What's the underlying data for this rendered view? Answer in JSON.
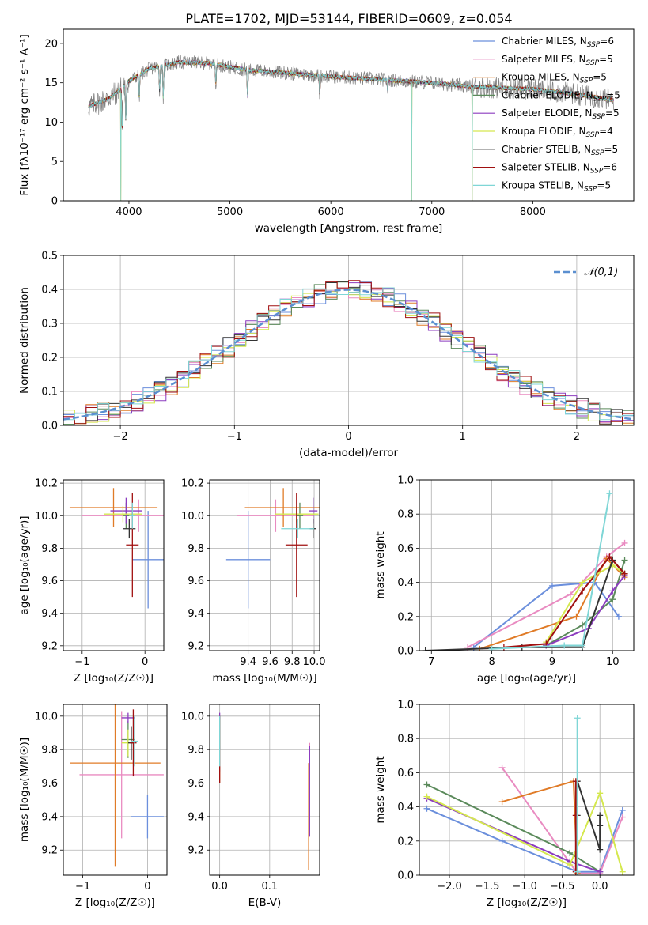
{
  "figure_title": "PLATE=1702, MJD=53144, FIBERID=0609, z=0.054",
  "colors": {
    "Chabrier MILES": "#6b8fdc",
    "Salpeter MILES": "#e98bc1",
    "Kroupa MILES": "#e07b27",
    "Chabrier ELODIE": "#5b8a5b",
    "Salpeter ELODIE": "#8c3cbf",
    "Kroupa ELODIE": "#d5e84f",
    "Chabrier STELIB": "#333333",
    "Salpeter STELIB": "#a01010",
    "Kroupa STELIB": "#7fd6d6",
    "data": "#808080",
    "normal": "#5b8fd0"
  },
  "chart_data": [
    {
      "type": "line",
      "title": "PLATE=1702, MJD=53144, FIBERID=0609, z=0.054",
      "xlabel": "wavelength [Angstrom, rest frame]",
      "ylabel": "Flux [fλ10⁻¹⁷ erg cm⁻² s⁻¹ A⁻¹]",
      "xlim": [
        3350,
        9000
      ],
      "ylim": [
        0,
        21.8
      ],
      "xticks": [
        4000,
        5000,
        6000,
        7000,
        8000
      ],
      "yticks": [
        0,
        5,
        10,
        15,
        20
      ],
      "grid": false,
      "legend_position": "upper-right",
      "legend": [
        {
          "base": "Chabrier MILES, N",
          "sub": "SSP",
          "n": "=6"
        },
        {
          "base": "Salpeter MILES, N",
          "sub": "SSP",
          "n": "=5"
        },
        {
          "base": "Kroupa MILES, N",
          "sub": "SSP",
          "n": "=5"
        },
        {
          "base": "Chabrier ELODIE, N",
          "sub": "SSP",
          "n": "=5"
        },
        {
          "base": "Salpeter ELODIE, N",
          "sub": "SSP",
          "n": "=5"
        },
        {
          "base": "Kroupa ELODIE, N",
          "sub": "SSP",
          "n": "=4"
        },
        {
          "base": "Chabrier STELIB, N",
          "sub": "SSP",
          "n": "=5"
        },
        {
          "base": "Salpeter STELIB, N",
          "sub": "SSP",
          "n": "=6"
        },
        {
          "base": "Kroupa STELIB, N",
          "sub": "SSP",
          "n": "=5"
        }
      ],
      "spectrum_range": [
        3600,
        8800
      ],
      "continuum": [
        [
          3600,
          12.0
        ],
        [
          3700,
          12.5
        ],
        [
          3800,
          13.0
        ],
        [
          3900,
          14.0
        ],
        [
          4000,
          15.2
        ],
        [
          4200,
          16.8
        ],
        [
          4500,
          17.6
        ],
        [
          4800,
          17.5
        ],
        [
          5000,
          17.0
        ],
        [
          5200,
          16.6
        ],
        [
          5500,
          16.3
        ],
        [
          6000,
          15.8
        ],
        [
          6500,
          15.4
        ],
        [
          7000,
          15.0
        ],
        [
          7400,
          14.5
        ],
        [
          8000,
          14.2
        ],
        [
          8400,
          13.6
        ],
        [
          8800,
          12.8
        ]
      ],
      "absorption_features": [
        {
          "wave": 3934,
          "depth": 5.5
        },
        {
          "wave": 3969,
          "depth": 4.5
        },
        {
          "wave": 4102,
          "depth": 3.0
        },
        {
          "wave": 4304,
          "depth": 3.0
        },
        {
          "wave": 4340,
          "depth": 4.0
        },
        {
          "wave": 4861,
          "depth": 2.5
        },
        {
          "wave": 5175,
          "depth": 3.5
        },
        {
          "wave": 5890,
          "depth": 2.5
        },
        {
          "wave": 6563,
          "depth": 1.2
        }
      ],
      "model_dropouts": [
        {
          "wave": 3920,
          "y_min": 0
        },
        {
          "wave": 6800,
          "y_min": 0
        },
        {
          "wave": 7400,
          "y_min": 0
        }
      ]
    },
    {
      "type": "step",
      "xlabel": "(data-model)/error",
      "ylabel": "Normed distribution",
      "xlim": [
        -2.5,
        2.5
      ],
      "ylim": [
        0,
        0.5
      ],
      "xticks": [
        -2,
        -1,
        0,
        1,
        2
      ],
      "yticks": [
        0.0,
        0.1,
        0.2,
        0.3,
        0.4,
        0.5
      ],
      "grid": true,
      "bin_width": 0.1,
      "legend": [
        "𝒩(0,1)"
      ],
      "legend_position": "upper-right",
      "normal_curve": {
        "mean": 0,
        "sigma": 1,
        "style": "dashed"
      }
    },
    {
      "type": "errorbar",
      "xlabel": "Z [log₁₀(Z/Z☉)]",
      "ylabel": "age  [log₁₀(age/yr)]",
      "xlim": [
        -1.3,
        0.3
      ],
      "ylim": [
        9.17,
        10.22
      ],
      "xticks": [
        -1,
        0
      ],
      "yticks": [
        9.2,
        9.4,
        9.6,
        9.8,
        10.0,
        10.2
      ],
      "grid": true,
      "points": [
        {
          "series": "Chabrier MILES",
          "x": 0.05,
          "xerr": 0.25,
          "y": 9.73,
          "yerr": 0.3
        },
        {
          "series": "Salpeter MILES",
          "x": -0.1,
          "xerr": 0.9,
          "y": 10.0,
          "yerr": 0.1
        },
        {
          "series": "Kroupa MILES",
          "x": -0.5,
          "xerr": 0.7,
          "y": 10.05,
          "yerr": 0.12
        },
        {
          "series": "Chabrier ELODIE",
          "x": -0.3,
          "xerr": 0.05,
          "y": 10.0,
          "yerr": 0.08
        },
        {
          "series": "Salpeter ELODIE",
          "x": -0.3,
          "xerr": 0.25,
          "y": 10.03,
          "yerr": 0.08
        },
        {
          "series": "Kroupa ELODIE",
          "x": -0.35,
          "xerr": 0.3,
          "y": 10.01,
          "yerr": 0.05
        },
        {
          "series": "Chabrier STELIB",
          "x": -0.25,
          "xerr": 0.1,
          "y": 9.92,
          "yerr": 0.06
        },
        {
          "series": "Salpeter STELIB",
          "x": -0.2,
          "xerr": 0.1,
          "y": 9.82,
          "yerr": 0.32
        },
        {
          "series": "Kroupa STELIB",
          "x": -0.2,
          "xerr": 0.05,
          "y": 10.0,
          "yerr": 0.08
        }
      ]
    },
    {
      "type": "errorbar",
      "xlabel": "mass [log₁₀(M/M☉)]",
      "ylabel": "",
      "xlim": [
        9.05,
        10.05
      ],
      "ylim": [
        9.17,
        10.22
      ],
      "xticks": [
        9.4,
        9.6,
        9.8,
        10.0
      ],
      "yticks": [
        9.2,
        9.4,
        9.6,
        9.8,
        10.0,
        10.2
      ],
      "grid": true,
      "points": [
        {
          "series": "Chabrier MILES",
          "x": 9.4,
          "xerr": 0.2,
          "y": 9.73,
          "yerr": 0.3
        },
        {
          "series": "Salpeter MILES",
          "x": 9.65,
          "xerr": 0.35,
          "y": 10.0,
          "yerr": 0.1
        },
        {
          "series": "Kroupa MILES",
          "x": 9.72,
          "xerr": 0.35,
          "y": 10.05,
          "yerr": 0.12
        },
        {
          "series": "Chabrier ELODIE",
          "x": 9.87,
          "xerr": 0.03,
          "y": 10.0,
          "yerr": 0.08
        },
        {
          "series": "Salpeter ELODIE",
          "x": 9.99,
          "xerr": 0.04,
          "y": 10.03,
          "yerr": 0.08
        },
        {
          "series": "Kroupa ELODIE",
          "x": 9.84,
          "xerr": 0.2,
          "y": 10.01,
          "yerr": 0.05
        },
        {
          "series": "Chabrier STELIB",
          "x": 9.99,
          "xerr": 0.03,
          "y": 9.92,
          "yerr": 0.06
        },
        {
          "series": "Salpeter STELIB",
          "x": 9.84,
          "xerr": 0.1,
          "y": 9.82,
          "yerr": 0.32
        },
        {
          "series": "Kroupa STELIB",
          "x": 9.85,
          "xerr": 0.15,
          "y": 9.92,
          "yerr": 0.06
        }
      ]
    },
    {
      "type": "line",
      "xlabel": "age  [log₁₀(age/yr)]",
      "ylabel": "mass weight",
      "xlim": [
        6.8,
        10.35
      ],
      "ylim": [
        0,
        1.0
      ],
      "xticks": [
        7,
        8,
        9,
        10
      ],
      "yticks": [
        0.0,
        0.2,
        0.4,
        0.6,
        0.8,
        1.0
      ],
      "grid": true,
      "marker": "+",
      "series": [
        {
          "name": "Chabrier MILES",
          "x": [
            7.7,
            9.0,
            9.7,
            10.1
          ],
          "y": [
            0.02,
            0.38,
            0.4,
            0.2
          ]
        },
        {
          "name": "Salpeter MILES",
          "x": [
            7.6,
            9.3,
            9.9,
            10.2
          ],
          "y": [
            0.02,
            0.33,
            0.55,
            0.63
          ]
        },
        {
          "name": "Kroupa MILES",
          "x": [
            7.8,
            9.4,
            9.9,
            10.2
          ],
          "y": [
            0.01,
            0.2,
            0.54,
            0.43
          ]
        },
        {
          "name": "Chabrier ELODIE",
          "x": [
            8.9,
            9.5,
            10.0,
            10.2
          ],
          "y": [
            0.03,
            0.15,
            0.3,
            0.53
          ]
        },
        {
          "name": "Salpeter ELODIE",
          "x": [
            8.9,
            9.6,
            10.0,
            10.2
          ],
          "y": [
            0.03,
            0.13,
            0.35,
            0.44
          ]
        },
        {
          "name": "Kroupa ELODIE",
          "x": [
            8.9,
            9.5,
            10.0,
            10.2
          ],
          "y": [
            0.05,
            0.4,
            0.5,
            0.45
          ]
        },
        {
          "name": "Chabrier STELIB",
          "x": [
            6.9,
            8.5,
            9.5,
            10.0,
            10.2
          ],
          "y": [
            0.0,
            0.02,
            0.02,
            0.53,
            0.45
          ]
        },
        {
          "name": "Salpeter STELIB",
          "x": [
            8.2,
            8.9,
            9.5,
            9.95,
            10.2
          ],
          "y": [
            0.02,
            0.04,
            0.35,
            0.55,
            0.45
          ]
        },
        {
          "name": "Kroupa STELIB",
          "x": [
            8.0,
            9.2,
            9.5,
            9.95
          ],
          "y": [
            0.01,
            0.03,
            0.03,
            0.92
          ]
        }
      ]
    },
    {
      "type": "errorbar",
      "xlabel": "Z [log₁₀(Z/Z☉)]",
      "ylabel": "mass [log₁₀(M/M☉)]",
      "xlim": [
        -1.3,
        0.3
      ],
      "ylim": [
        9.05,
        10.07
      ],
      "xticks": [
        -1,
        0
      ],
      "yticks": [
        9.2,
        9.4,
        9.6,
        9.8,
        10.0
      ],
      "grid": true,
      "points": [
        {
          "series": "Chabrier MILES",
          "x": 0.0,
          "xerr": 0.25,
          "y": 9.4,
          "yerr": 0.13
        },
        {
          "series": "Salpeter MILES",
          "x": -0.4,
          "xerr": 0.65,
          "y": 9.65,
          "yerr": 0.38
        },
        {
          "series": "Kroupa MILES",
          "x": -0.5,
          "xerr": 0.7,
          "y": 9.72,
          "yerr": 0.62
        },
        {
          "series": "Chabrier ELODIE",
          "x": -0.3,
          "xerr": 0.1,
          "y": 9.86,
          "yerr": 0.11
        },
        {
          "series": "Salpeter ELODIE",
          "x": -0.3,
          "xerr": 0.1,
          "y": 9.99,
          "yerr": 0.03
        },
        {
          "series": "Kroupa ELODIE",
          "x": -0.3,
          "xerr": 0.1,
          "y": 9.84,
          "yerr": 0.08
        },
        {
          "series": "Chabrier STELIB",
          "x": -0.25,
          "xerr": 0.05,
          "y": 9.84,
          "yerr": 0.1
        },
        {
          "series": "Salpeter STELIB",
          "x": -0.22,
          "xerr": 0.05,
          "y": 9.84,
          "yerr": 0.2
        },
        {
          "series": "Kroupa STELIB",
          "x": -0.2,
          "xerr": 0.05,
          "y": 9.85,
          "yerr": 0.15
        }
      ]
    },
    {
      "type": "errorbar",
      "xlabel": "E(B-V)",
      "ylabel": "",
      "xlim": [
        -0.02,
        0.2
      ],
      "ylim": [
        9.05,
        10.07
      ],
      "xticks": [
        0.0,
        0.1
      ],
      "yticks": [
        9.2,
        9.4,
        9.6,
        9.8,
        10.0
      ],
      "grid": true,
      "points": [
        {
          "series": "Chabrier MILES",
          "x": 0.0,
          "y": 9.82,
          "yerr": 0.15
        },
        {
          "series": "Salpeter MILES",
          "x": 0.0,
          "y": 9.85,
          "yerr": 0.15
        },
        {
          "series": "Kroupa MILES",
          "x": 0.0,
          "y": 9.8,
          "yerr": 0.2
        },
        {
          "series": "Chabrier ELODIE",
          "x": 0.0,
          "y": 9.9,
          "yerr": 0.1
        },
        {
          "series": "Salpeter ELODIE",
          "x": 0.0,
          "y": 9.95,
          "yerr": 0.07
        },
        {
          "series": "Kroupa ELODIE",
          "x": 0.0,
          "y": 9.9,
          "yerr": 0.08
        },
        {
          "series": "Chabrier STELIB",
          "x": 0.0,
          "y": 9.9,
          "yerr": 0.1
        },
        {
          "series": "Salpeter STELIB",
          "x": 0.0,
          "y": 9.8,
          "yerr": 0.2
        },
        {
          "series": "Kroupa STELIB",
          "x": 0.0,
          "y": 9.85,
          "yerr": 0.15
        },
        {
          "series": "Salpeter MILES",
          "x": 0.18,
          "y": 9.56,
          "yerr": 0.28
        },
        {
          "series": "Salpeter ELODIE",
          "x": 0.18,
          "y": 9.55,
          "yerr": 0.27
        },
        {
          "series": "Kroupa MILES",
          "x": 0.178,
          "y": 9.4,
          "yerr": 0.32
        }
      ]
    },
    {
      "type": "line",
      "xlabel": "Z [log₁₀(Z/Z☉)]",
      "ylabel": "mass weight",
      "xlim": [
        -2.4,
        0.45
      ],
      "ylim": [
        0,
        1.0
      ],
      "xticks": [
        -2.0,
        -1.5,
        -1.0,
        -0.5,
        0.0
      ],
      "yticks": [
        0.0,
        0.2,
        0.4,
        0.6,
        0.8,
        1.0
      ],
      "grid": true,
      "marker": "+",
      "series": [
        {
          "name": "Chabrier MILES",
          "x": [
            -2.3,
            -1.3,
            -0.3,
            0.0,
            0.3
          ],
          "y": [
            0.39,
            0.2,
            0.02,
            0.02,
            0.38
          ]
        },
        {
          "name": "Salpeter MILES",
          "x": [
            -1.3,
            -0.3,
            0.0,
            0.3
          ],
          "y": [
            0.63,
            0.01,
            0.01,
            0.34
          ]
        },
        {
          "name": "Kroupa MILES",
          "x": [
            -1.3,
            -0.35,
            -0.3
          ],
          "y": [
            0.43,
            0.55,
            0.01
          ]
        },
        {
          "name": "Chabrier ELODIE",
          "x": [
            -2.3,
            -0.4,
            0.0
          ],
          "y": [
            0.53,
            0.13,
            0.02
          ]
        },
        {
          "name": "Salpeter ELODIE",
          "x": [
            -2.3,
            -0.4,
            0.0
          ],
          "y": [
            0.45,
            0.08,
            0.02
          ]
        },
        {
          "name": "Kroupa ELODIE",
          "x": [
            -2.3,
            -0.4,
            0.0,
            0.3
          ],
          "y": [
            0.46,
            0.06,
            0.48,
            0.02
          ]
        },
        {
          "name": "Chabrier STELIB",
          "x": [
            -0.3,
            -0.3,
            0.0,
            0.0,
            0.0
          ],
          "y": [
            0.35,
            0.55,
            0.15,
            0.29,
            0.35
          ]
        },
        {
          "name": "Salpeter STELIB",
          "x": [
            -0.32,
            -0.32,
            -0.32
          ],
          "y": [
            0.02,
            0.35,
            0.55
          ]
        },
        {
          "name": "Kroupa STELIB",
          "x": [
            -0.3,
            -0.3
          ],
          "y": [
            0.92,
            0.02
          ]
        }
      ]
    }
  ]
}
